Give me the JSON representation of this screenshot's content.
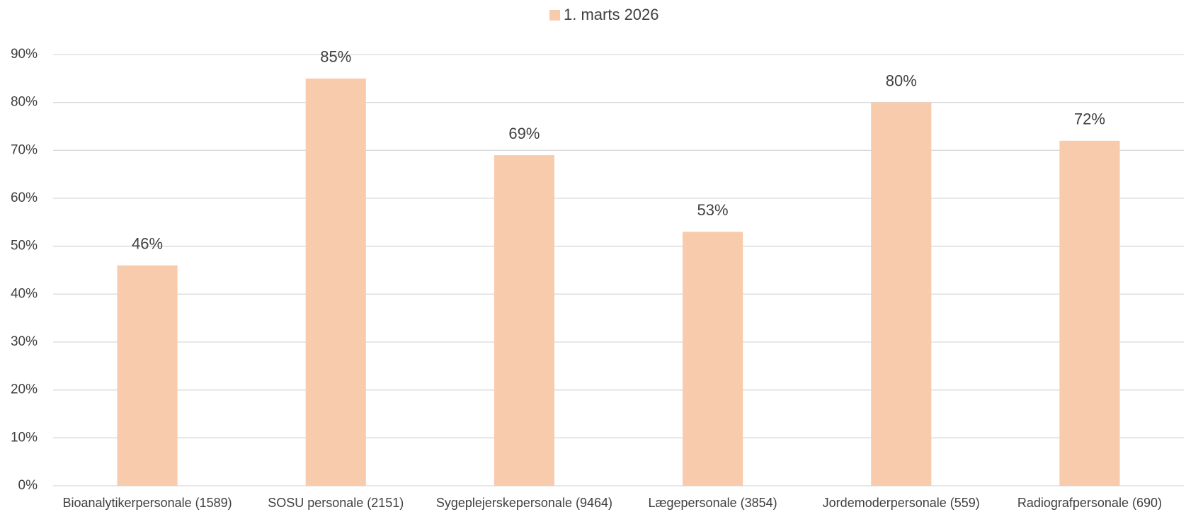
{
  "chart_data": {
    "type": "bar",
    "categories": [
      "Bioanalytikerpersonale (1589)",
      "SOSU personale (2151)",
      "Sygeplejerskepersonale (9464)",
      "Lægepersonale (3854)",
      "Jordemoderpersonale (559)",
      "Radiografpersonale (690)"
    ],
    "series": [
      {
        "name": "1. marts 2026",
        "color": "#f8cbad",
        "values": [
          46,
          85,
          69,
          53,
          80,
          72
        ],
        "value_labels": [
          "46%",
          "85%",
          "69%",
          "53%",
          "80%",
          "72%"
        ]
      }
    ],
    "ylim": [
      0,
      90
    ],
    "yticks": [
      {
        "value": 0,
        "label": "0%"
      },
      {
        "value": 10,
        "label": "10%"
      },
      {
        "value": 20,
        "label": "20%"
      },
      {
        "value": 30,
        "label": "30%"
      },
      {
        "value": 40,
        "label": "40%"
      },
      {
        "value": 50,
        "label": "50%"
      },
      {
        "value": 60,
        "label": "60%"
      },
      {
        "value": 70,
        "label": "70%"
      },
      {
        "value": 80,
        "label": "80%"
      },
      {
        "value": 90,
        "label": "90%"
      }
    ],
    "grid": true,
    "legend": "top"
  }
}
